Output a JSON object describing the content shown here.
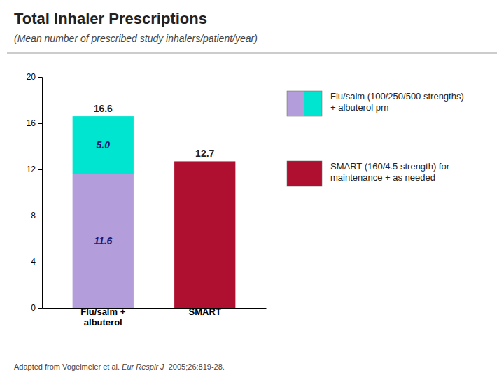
{
  "chart_data": {
    "type": "bar",
    "stacked": true,
    "data_labels": true,
    "grid": false,
    "title": "Total Inhaler Prescriptions",
    "subtitle": "(Mean number of prescribed study inhalers/patient/year)",
    "categories": [
      "Flu/salm +\nalbuterol",
      "SMART"
    ],
    "series": [
      {
        "name": "Flu/salm (100/250/500 strengths)\n+ albuterol prn",
        "color": "#b39ddb",
        "values": [
          11.6,
          null
        ],
        "value_labels": [
          "11.6",
          null
        ]
      },
      {
        "color": "#00e5d0",
        "values": [
          5.0,
          null
        ],
        "value_labels": [
          "5.0",
          null
        ]
      },
      {
        "name": "SMART (160/4.5 strength) for\nmaintenance + as needed",
        "color": "#b01030",
        "values": [
          null,
          12.7
        ],
        "value_labels": [
          null,
          "12.7"
        ]
      }
    ],
    "totals": [
      16.6,
      null
    ],
    "ylim": [
      0,
      20
    ],
    "yticks": [
      0,
      4,
      8,
      12,
      16,
      20
    ],
    "footnote": [
      "Adapted from Vogelmeier et al. ",
      "Eur Respir J",
      "  2005;26:819-28."
    ]
  }
}
